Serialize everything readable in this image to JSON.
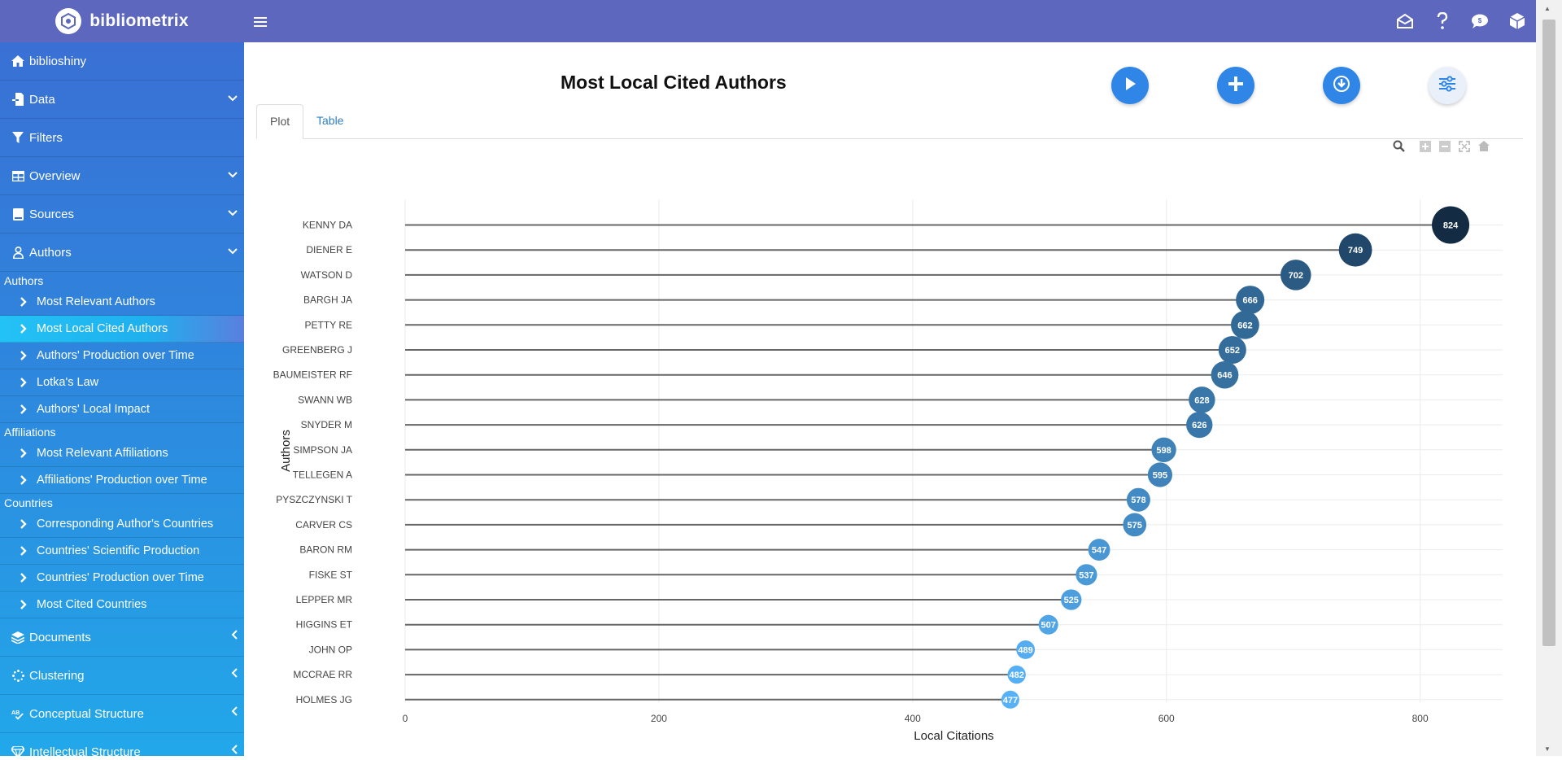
{
  "app": {
    "name": "bibliometrix"
  },
  "colors": {
    "topbar": "#5c67bd",
    "accent": "#2f86e6",
    "sidebar_top": "#3a70d4",
    "sidebar_bottom": "#22a8ea"
  },
  "sidebar": {
    "top_items": [
      {
        "label": "biblioshiny",
        "icon": "home-icon"
      },
      {
        "label": "Data",
        "icon": "file-import-icon",
        "chevron": "down"
      },
      {
        "label": "Filters",
        "icon": "filter-icon"
      },
      {
        "label": "Overview",
        "icon": "table-icon",
        "chevron": "down"
      },
      {
        "label": "Sources",
        "icon": "book-icon",
        "chevron": "down"
      },
      {
        "label": "Authors",
        "icon": "user-icon",
        "chevron": "down"
      }
    ],
    "sections": [
      {
        "title": "Authors",
        "items": [
          "Most Relevant Authors",
          "Most Local Cited Authors",
          "Authors' Production over Time",
          "Lotka's Law",
          "Authors' Local Impact"
        ]
      },
      {
        "title": "Affiliations",
        "items": [
          "Most Relevant Affiliations",
          "Affiliations' Production over Time"
        ]
      },
      {
        "title": "Countries",
        "items": [
          "Corresponding Author's Countries",
          "Countries' Scientific Production",
          "Countries' Production over Time",
          "Most Cited Countries"
        ]
      }
    ],
    "active_item": "Most Local Cited Authors",
    "bottom_items": [
      {
        "label": "Documents",
        "icon": "layers-icon",
        "chevron": "left"
      },
      {
        "label": "Clustering",
        "icon": "spinner-icon",
        "chevron": "left"
      },
      {
        "label": "Conceptual Structure",
        "icon": "spell-check-icon",
        "chevron": "left"
      },
      {
        "label": "Intellectual Structure",
        "icon": "gem-icon",
        "chevron": "left"
      }
    ]
  },
  "main": {
    "title": "Most Local Cited Authors",
    "tabs": [
      {
        "label": "Plot",
        "active": true
      },
      {
        "label": "Table",
        "active": false
      }
    ],
    "actions": [
      "run-icon",
      "add-icon",
      "download-icon",
      "options-icon"
    ]
  },
  "chart_data": {
    "type": "lollipop",
    "xlabel": "Local Citations",
    "ylabel": "Authors",
    "xlim": [
      0,
      865
    ],
    "xticks": [
      0,
      200,
      400,
      600,
      800
    ],
    "categories": [
      "KENNY DA",
      "DIENER E",
      "WATSON D",
      "BARGH JA",
      "PETTY RE",
      "GREENBERG J",
      "BAUMEISTER RF",
      "SWANN WB",
      "SNYDER M",
      "SIMPSON JA",
      "TELLEGEN A",
      "PYSZCZYNSKI T",
      "CARVER CS",
      "BARON RM",
      "FISKE ST",
      "LEPPER MR",
      "HIGGINS ET",
      "JOHN OP",
      "MCCRAE RR",
      "HOLMES JG"
    ],
    "values": [
      824,
      749,
      702,
      666,
      662,
      652,
      646,
      628,
      626,
      598,
      595,
      578,
      575,
      547,
      537,
      525,
      507,
      489,
      482,
      477
    ],
    "grid": true,
    "color_scale": [
      "#56b1f7",
      "#132b43"
    ]
  }
}
